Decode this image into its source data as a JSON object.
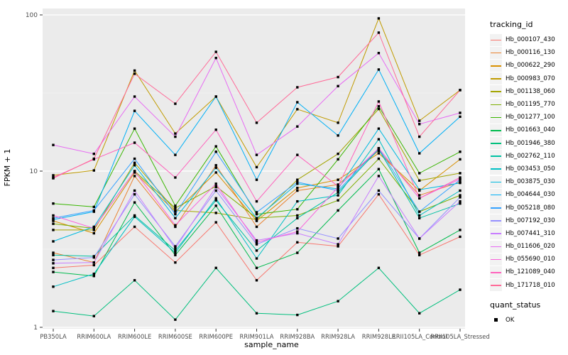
{
  "figure": {
    "ylabel": "FPKM + 1",
    "xlabel": "sample_name"
  },
  "legend": {
    "tracking_title": "tracking_id",
    "quant_title": "quant_status",
    "quant_ok_label": "OK"
  },
  "colors": {
    "panel_bg": "#EBEBEB",
    "grid_major": "#FFFFFF",
    "grid_minor": "#F5F5F5",
    "axis_text": "#4D4D4D",
    "point": "#000000",
    "legend_key_bg": "#F2F2F2"
  },
  "chart_data": {
    "type": "line",
    "title": "",
    "xlabel": "sample_name",
    "ylabel": "FPKM + 1",
    "x_scale": "categorical",
    "y_scale": "log10",
    "ylim": [
      1,
      100
    ],
    "y_tick_values": [
      1,
      10,
      100
    ],
    "y_tick_labels": [
      "1",
      "10",
      "100"
    ],
    "grid": "white major and minor on gray panel",
    "legend_position": "right",
    "marker": "black-square",
    "quant_status": "OK",
    "categories": [
      "PB350LA",
      "RRIM600LA",
      "RRIM600LE",
      "RRIM600SE",
      "RRIM600PE",
      "RRIM901LA",
      "RRIM928BA",
      "RRIM928LA",
      "RRIM928LE",
      "RRII105LA_Control",
      "RRII105LA_Stressed"
    ],
    "series": [
      {
        "name": "Hb_000107_430",
        "color": "#F8766D",
        "values": [
          2.4,
          2.5,
          4.4,
          2.6,
          4.7,
          2.0,
          3.5,
          3.3,
          7.1,
          2.9,
          3.8
        ]
      },
      {
        "name": "Hb_000116_130",
        "color": "#EA8331",
        "values": [
          3.0,
          2.6,
          9.3,
          4.4,
          10.9,
          4.4,
          7.5,
          8.2,
          13.5,
          7.0,
          8.5
        ]
      },
      {
        "name": "Hb_000622_290",
        "color": "#D89000",
        "values": [
          4.8,
          4.0,
          9.8,
          5.5,
          9.8,
          4.8,
          7.8,
          8.8,
          13.0,
          7.5,
          11.9
        ]
      },
      {
        "name": "Hb_000983_070",
        "color": "#C09B00",
        "values": [
          9.4,
          10.1,
          44,
          17.4,
          30,
          10.6,
          24.9,
          20.4,
          95,
          21,
          33
        ]
      },
      {
        "name": "Hb_001138_060",
        "color": "#A3A500",
        "values": [
          4.2,
          4.2,
          11.3,
          5.6,
          5.4,
          4.9,
          8.8,
          12.9,
          25,
          8.7,
          9.7
        ]
      },
      {
        "name": "Hb_001195_770",
        "color": "#7CAE00",
        "values": [
          4.6,
          4.3,
          10.0,
          5.8,
          8.0,
          5.0,
          5.2,
          6.5,
          12.0,
          5.5,
          7.0
        ]
      },
      {
        "name": "Hb_001277_100",
        "color": "#39B600",
        "values": [
          6.2,
          5.9,
          18.7,
          6.0,
          14.4,
          5.3,
          5.7,
          11.9,
          26,
          9.7,
          13.3
        ]
      },
      {
        "name": "Hb_001663_040",
        "color": "#00BB4E",
        "values": [
          2.26,
          2.13,
          6.3,
          2.9,
          6.0,
          2.4,
          3.0,
          5.6,
          10.3,
          3.0,
          4.2
        ]
      },
      {
        "name": "Hb_001946_380",
        "color": "#00BF7D",
        "values": [
          1.27,
          1.18,
          2.0,
          1.12,
          2.4,
          1.23,
          1.2,
          1.47,
          2.4,
          1.23,
          1.74
        ]
      },
      {
        "name": "Hb_002762_110",
        "color": "#00C1A3",
        "values": [
          2.9,
          2.85,
          5.2,
          3.1,
          6.5,
          3.1,
          5.0,
          7.3,
          13.8,
          5.0,
          6.2
        ]
      },
      {
        "name": "Hb_003453_050",
        "color": "#00BFC4",
        "values": [
          1.82,
          2.2,
          5.1,
          3.0,
          6.7,
          2.76,
          6.4,
          7.0,
          16.0,
          5.2,
          7.5
        ]
      },
      {
        "name": "Hb_003875_030",
        "color": "#00BAE0",
        "values": [
          3.55,
          4.4,
          10.9,
          5.0,
          10.5,
          5.0,
          8.3,
          7.7,
          18.7,
          7.6,
          8.4
        ]
      },
      {
        "name": "Hb_004644_030",
        "color": "#00B0F6",
        "values": [
          4.9,
          5.5,
          24.3,
          12.7,
          30,
          8.8,
          27.6,
          16.9,
          44.7,
          13.0,
          22.3
        ]
      },
      {
        "name": "Hb_005218_080",
        "color": "#35A2FF",
        "values": [
          5.0,
          5.6,
          12.0,
          5.3,
          13.3,
          5.45,
          8.5,
          7.5,
          14.0,
          5.5,
          8.8
        ]
      },
      {
        "name": "Hb_007192_030",
        "color": "#9590FF",
        "values": [
          2.7,
          2.8,
          7.1,
          3.3,
          7.5,
          3.4,
          4.3,
          3.7,
          7.5,
          3.7,
          6.8
        ]
      },
      {
        "name": "Hb_007441_310",
        "color": "#C77CFF",
        "values": [
          2.57,
          2.6,
          7.5,
          3.2,
          7.9,
          3.6,
          4.0,
          3.4,
          9.3,
          3.7,
          6.4
        ]
      },
      {
        "name": "Hb_011606_020",
        "color": "#E76BF3",
        "values": [
          14.7,
          12.9,
          30,
          16.6,
          53,
          12.7,
          19.3,
          35,
          57,
          20,
          23.6
        ]
      },
      {
        "name": "Hb_055690_010",
        "color": "#FA62DB",
        "values": [
          5.2,
          4.3,
          10.0,
          4.5,
          8.3,
          3.5,
          4.1,
          7.9,
          14.0,
          6.7,
          8.9
        ]
      },
      {
        "name": "Hb_121089_040",
        "color": "#FF62BC",
        "values": [
          9.1,
          11.9,
          15.2,
          9.1,
          18.4,
          6.4,
          12.7,
          8.0,
          27.9,
          6.7,
          9.1
        ]
      },
      {
        "name": "Hb_171718_010",
        "color": "#FF6A98",
        "values": [
          9.0,
          12.0,
          42,
          27,
          58,
          20.4,
          34.4,
          40,
          77,
          16.6,
          33
        ]
      }
    ]
  }
}
